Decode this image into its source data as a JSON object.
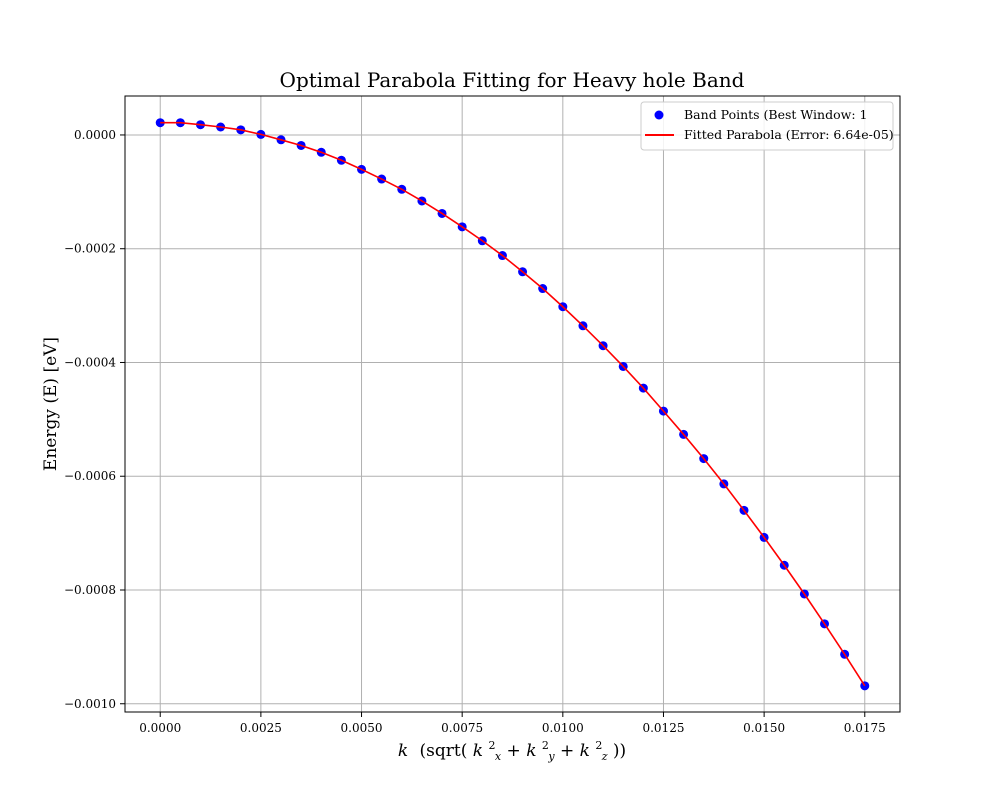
{
  "chart_data": {
    "type": "scatter",
    "title": "Optimal Parabola Fitting for Heavy hole Band",
    "xlabel": "k (sqrt(k_x² + k_y² + k_z²))",
    "xlabel_parts": {
      "k": "k",
      "pre": "(sqrt(",
      "kx": "k",
      "x_sub": "x",
      "plus1": " + ",
      "ky": "k",
      "y_sub": "y",
      "plus2": " + ",
      "kz": "k",
      "z_sub": "z",
      "sup": "2",
      "post": "))"
    },
    "ylabel": "Energy (E) [eV]",
    "xlim": [
      -0.000875,
      0.018375
    ],
    "ylim": [
      -0.0010145,
      6.85e-05
    ],
    "xticks": [
      0.0,
      0.0025,
      0.005,
      0.0075,
      0.01,
      0.0125,
      0.015,
      0.0175
    ],
    "xtick_labels": [
      "0.0000",
      "0.0025",
      "0.0050",
      "0.0075",
      "0.0100",
      "0.0125",
      "0.0150",
      "0.0175"
    ],
    "yticks": [
      0.0,
      -0.0002,
      -0.0004,
      -0.0006,
      -0.0008,
      -0.001
    ],
    "ytick_labels": [
      "0.0000",
      "−0.0002",
      "−0.0004",
      "−0.0006",
      "−0.0008",
      "−0.0010"
    ],
    "grid": true,
    "legend_position": "top-right",
    "series": [
      {
        "name": "Band Points (Best Window: 1",
        "kind": "scatter",
        "color": "#0000ff",
        "x": [
          0.0,
          0.0005,
          0.001,
          0.0015,
          0.002,
          0.0025,
          0.003,
          0.0035,
          0.004,
          0.0045,
          0.005,
          0.0055,
          0.006,
          0.0065,
          0.007,
          0.0075,
          0.008,
          0.0085,
          0.009,
          0.0095,
          0.01,
          0.0105,
          0.011,
          0.0115,
          0.012,
          0.0125,
          0.013,
          0.0135,
          0.014,
          0.0145,
          0.015,
          0.0155,
          0.016,
          0.0165,
          0.017,
          0.0175
        ],
        "y": [
          2.15e-05,
          2.15e-05,
          1.8e-05,
          1.4e-05,
          9e-06,
          1e-06,
          -8.5e-06,
          -1.85e-05,
          -3.05e-05,
          -4.45e-05,
          -6.05e-05,
          -7.75e-05,
          -9.55e-05,
          -0.000116,
          -0.000138,
          -0.0001615,
          -0.000186,
          -0.000212,
          -0.0002405,
          -0.00027,
          -0.000302,
          -0.0003355,
          -0.0003705,
          -0.000407,
          -0.000445,
          -0.0004855,
          -0.0005265,
          -0.000569,
          -0.0006135,
          -0.00066,
          -0.0007075,
          -0.0007565,
          -0.000807,
          -0.0008595,
          -0.000913,
          -0.0009685
        ]
      },
      {
        "name": "Fitted Parabola (Error: 6.64e-05)",
        "kind": "line",
        "color": "#ff0000",
        "x": [
          0.0,
          0.0005,
          0.001,
          0.0015,
          0.002,
          0.0025,
          0.003,
          0.0035,
          0.004,
          0.0045,
          0.005,
          0.0055,
          0.006,
          0.0065,
          0.007,
          0.0075,
          0.008,
          0.0085,
          0.009,
          0.0095,
          0.01,
          0.0105,
          0.011,
          0.0115,
          0.012,
          0.0125,
          0.013,
          0.0135,
          0.014,
          0.0145,
          0.015,
          0.0155,
          0.016,
          0.0165,
          0.017,
          0.0175
        ],
        "y": [
          2.15e-05,
          2.15e-05,
          1.8e-05,
          1.4e-05,
          9e-06,
          1e-06,
          -8.5e-06,
          -1.85e-05,
          -3.05e-05,
          -4.45e-05,
          -6.05e-05,
          -7.75e-05,
          -9.55e-05,
          -0.000116,
          -0.000138,
          -0.0001615,
          -0.000186,
          -0.000212,
          -0.0002405,
          -0.00027,
          -0.000302,
          -0.0003355,
          -0.0003705,
          -0.000407,
          -0.000445,
          -0.0004855,
          -0.0005265,
          -0.000569,
          -0.0006135,
          -0.00066,
          -0.0007075,
          -0.0007565,
          -0.000807,
          -0.0008595,
          -0.000913,
          -0.0009685
        ]
      }
    ]
  }
}
